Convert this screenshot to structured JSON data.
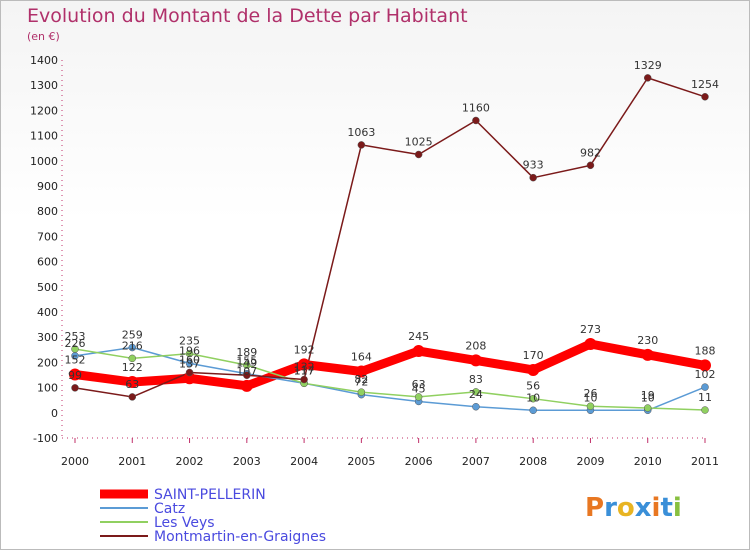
{
  "title": "Evolution du Montant de la Dette par Habitant",
  "subtitle": "(en €)",
  "chart_data": {
    "type": "line",
    "x": [
      "2000",
      "2001",
      "2002",
      "2003",
      "2004",
      "2005",
      "2006",
      "2007",
      "2008",
      "2009",
      "2010",
      "2011"
    ],
    "ylim": [
      -100,
      1400
    ],
    "yticks": [
      -100,
      0,
      100,
      200,
      300,
      400,
      500,
      600,
      700,
      800,
      900,
      1000,
      1100,
      1200,
      1300,
      1400
    ],
    "grid": false,
    "legend": "bottom-left",
    "series": [
      {
        "name": "SAINT-PELLERIN",
        "color": "#ff0000",
        "width": 9,
        "values": [
          152,
          122,
          137,
          107,
          192,
          164,
          245,
          208,
          170,
          273,
          230,
          188
        ]
      },
      {
        "name": "Catz",
        "color": "#5b9bd5",
        "width": 1.5,
        "values": [
          226,
          259,
          196,
          155,
          117,
          72,
          45,
          24,
          10,
          10,
          10,
          102
        ]
      },
      {
        "name": "Les Veys",
        "color": "#90d060",
        "width": 1.5,
        "values": [
          253,
          216,
          235,
          189,
          117,
          82,
          63,
          83,
          56,
          26,
          19,
          11
        ]
      },
      {
        "name": "Montmartin-en-Graignes",
        "color": "#7b1a1a",
        "width": 1.5,
        "values": [
          99,
          63,
          160,
          149,
          132,
          1063,
          1025,
          1160,
          933,
          982,
          1329,
          1254
        ]
      }
    ]
  },
  "watermark": "Proxiti"
}
